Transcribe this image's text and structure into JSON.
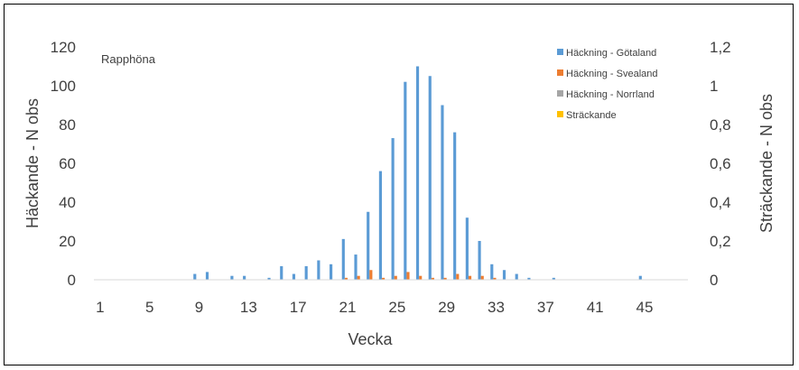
{
  "chart_data": {
    "type": "bar",
    "annotation": "Rapphöna",
    "xlabel": "Vecka",
    "ylabel_left": "Häckande - N obs",
    "ylabel_right": "Sträckande - N obs",
    "x_tick_labels": [
      "1",
      "5",
      "9",
      "13",
      "17",
      "21",
      "25",
      "29",
      "33",
      "37",
      "41",
      "45"
    ],
    "y_left_ticks": [
      "0",
      "20",
      "40",
      "60",
      "80",
      "100",
      "120"
    ],
    "y_right_ticks": [
      "0",
      "0,2",
      "0,4",
      "0,6",
      "0,8",
      "1",
      "1,2"
    ],
    "ylim_left": [
      0,
      120
    ],
    "ylim_right": [
      0,
      1.2
    ],
    "grid": false,
    "legend_position": "top-right",
    "x": [
      1,
      2,
      3,
      4,
      5,
      6,
      7,
      8,
      9,
      10,
      11,
      12,
      13,
      14,
      15,
      16,
      17,
      18,
      19,
      20,
      21,
      22,
      23,
      24,
      25,
      26,
      27,
      28,
      29,
      30,
      31,
      32,
      33,
      34,
      35,
      36,
      37,
      38,
      39,
      40,
      41,
      42,
      43,
      44,
      45,
      46,
      47,
      48
    ],
    "series": [
      {
        "name": "Häckning - Götaland",
        "color": "#5b9bd5",
        "axis": "left",
        "values": [
          0,
          0,
          0,
          0,
          0,
          0,
          0,
          0,
          3,
          4,
          0,
          2,
          2,
          0,
          1,
          7,
          3,
          7,
          10,
          8,
          21,
          13,
          35,
          56,
          73,
          102,
          110,
          105,
          90,
          76,
          32,
          20,
          8,
          5,
          3,
          1,
          0,
          1,
          0,
          0,
          0,
          0,
          0,
          0,
          2,
          0,
          0,
          0
        ]
      },
      {
        "name": "Häckning - Svealand",
        "color": "#ed7d31",
        "axis": "left",
        "values": [
          0,
          0,
          0,
          0,
          0,
          0,
          0,
          0,
          0,
          0,
          0,
          0,
          0,
          0,
          0,
          0,
          0,
          0,
          0,
          0,
          1,
          2,
          5,
          1,
          2,
          4,
          2,
          1,
          1,
          3,
          2,
          2,
          1,
          0,
          0,
          0,
          0,
          0,
          0,
          0,
          0,
          0,
          0,
          0,
          0,
          0,
          0,
          0
        ]
      },
      {
        "name": "Häckning - Norrland",
        "color": "#a5a5a5",
        "axis": "left",
        "values": [
          0,
          0,
          0,
          0,
          0,
          0,
          0,
          0,
          0,
          0,
          0,
          0,
          0,
          0,
          0,
          0,
          0,
          0,
          0,
          0,
          0,
          0,
          0,
          0,
          0,
          0,
          0,
          0,
          0,
          0,
          0,
          0,
          0,
          0,
          0,
          0,
          0,
          0,
          0,
          0,
          0,
          0,
          0,
          0,
          0,
          0,
          0,
          0
        ]
      },
      {
        "name": "Sträckande",
        "color": "#ffc000",
        "axis": "right",
        "values": [
          0,
          0,
          0,
          0,
          0,
          0,
          0,
          0,
          0,
          0,
          0,
          0,
          0,
          0,
          0,
          0,
          0,
          0,
          0,
          0,
          0,
          0,
          0,
          0,
          0,
          0,
          0,
          0,
          0,
          0,
          0,
          0,
          0,
          0,
          0,
          0,
          0,
          0,
          0,
          0,
          0,
          0,
          0,
          0,
          0,
          0,
          0,
          0
        ]
      }
    ]
  }
}
